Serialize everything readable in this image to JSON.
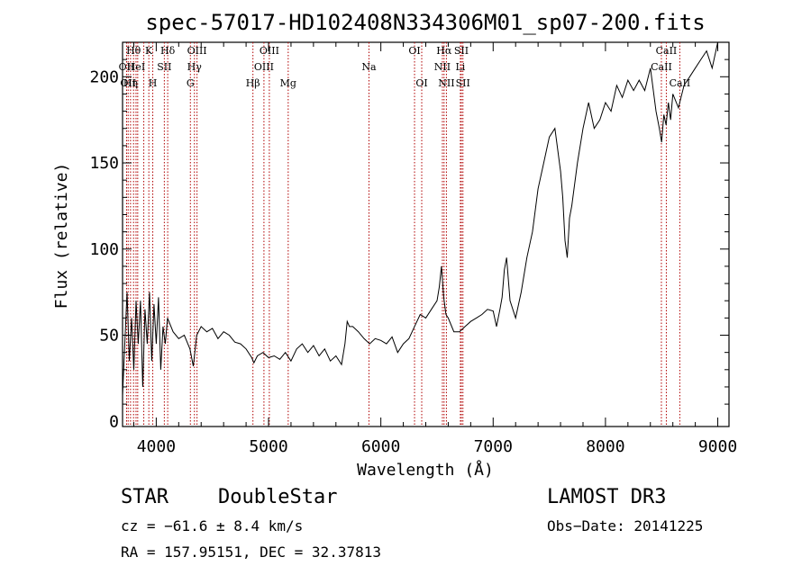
{
  "title": "spec-57017-HD102408N334306M01_sp07-200.fits",
  "chart_data": {
    "type": "line",
    "xlabel": "Wavelength (Å)",
    "ylabel": "Flux (relative)",
    "xlim": [
      3700,
      9100
    ],
    "ylim": [
      -3,
      220
    ],
    "xticks": [
      4000,
      5000,
      6000,
      7000,
      8000,
      9000
    ],
    "yticks": [
      0,
      50,
      100,
      150,
      200
    ],
    "grid": false,
    "series": [
      {
        "color": "#000000",
        "x": [
          3700,
          3720,
          3740,
          3760,
          3780,
          3800,
          3820,
          3840,
          3860,
          3880,
          3900,
          3920,
          3940,
          3960,
          3980,
          4000,
          4020,
          4040,
          4060,
          4080,
          4100,
          4150,
          4200,
          4250,
          4300,
          4330,
          4360,
          4400,
          4450,
          4500,
          4550,
          4600,
          4650,
          4700,
          4750,
          4800,
          4850,
          4870,
          4900,
          4950,
          5000,
          5050,
          5100,
          5150,
          5200,
          5250,
          5300,
          5350,
          5400,
          5450,
          5500,
          5550,
          5600,
          5650,
          5680,
          5700,
          5720,
          5750,
          5800,
          5850,
          5900,
          5950,
          6000,
          6050,
          6100,
          6150,
          6200,
          6250,
          6300,
          6350,
          6400,
          6450,
          6500,
          6520,
          6540,
          6560,
          6580,
          6600,
          6650,
          6700,
          6750,
          6800,
          6850,
          6900,
          6950,
          7000,
          7030,
          7060,
          7080,
          7100,
          7120,
          7150,
          7200,
          7250,
          7300,
          7350,
          7400,
          7450,
          7500,
          7550,
          7600,
          7620,
          7640,
          7660,
          7680,
          7700,
          7750,
          7800,
          7850,
          7900,
          7950,
          8000,
          8050,
          8100,
          8150,
          8200,
          8250,
          8300,
          8350,
          8400,
          8450,
          8480,
          8500,
          8520,
          8540,
          8560,
          8580,
          8600,
          8650,
          8700,
          8750,
          8800,
          8850,
          8900,
          8950,
          9000
        ],
        "y": [
          15,
          45,
          75,
          35,
          60,
          30,
          70,
          45,
          70,
          20,
          65,
          45,
          75,
          35,
          68,
          45,
          72,
          30,
          55,
          45,
          60,
          52,
          48,
          50,
          42,
          32,
          50,
          55,
          52,
          54,
          48,
          52,
          50,
          46,
          45,
          42,
          37,
          34,
          38,
          40,
          37,
          38,
          36,
          40,
          35,
          42,
          45,
          40,
          44,
          38,
          42,
          35,
          38,
          33,
          45,
          58,
          55,
          55,
          52,
          48,
          45,
          48,
          47,
          45,
          49,
          40,
          45,
          48,
          55,
          62,
          60,
          65,
          70,
          78,
          90,
          72,
          62,
          60,
          52,
          52,
          55,
          58,
          60,
          62,
          65,
          64,
          55,
          65,
          72,
          88,
          95,
          70,
          60,
          75,
          95,
          110,
          135,
          150,
          165,
          170,
          145,
          130,
          105,
          95,
          118,
          125,
          150,
          170,
          185,
          170,
          175,
          185,
          180,
          195,
          188,
          198,
          192,
          198,
          192,
          205,
          180,
          170,
          162,
          178,
          172,
          185,
          175,
          190,
          182,
          195,
          200,
          205,
          210,
          215,
          205,
          222
        ]
      }
    ],
    "lines": [
      {
        "w": 3736,
        "label": "OII",
        "row": 2
      },
      {
        "w": 3750,
        "label": "OII",
        "row": 3
      },
      {
        "w": 3771,
        "label": "Hη",
        "row": 3
      },
      {
        "w": 3798,
        "label": "Hθ",
        "row": 1
      },
      {
        "w": 3820,
        "label": "HeI",
        "row": 2
      },
      {
        "w": 3835,
        "label": "",
        "row": 0
      },
      {
        "w": 3889,
        "label": "",
        "row": 0
      },
      {
        "w": 3934,
        "label": "K",
        "row": 1
      },
      {
        "w": 3969,
        "label": "H",
        "row": 3
      },
      {
        "w": 4072,
        "label": "SII",
        "row": 2
      },
      {
        "w": 4102,
        "label": "Hδ",
        "row": 1
      },
      {
        "w": 4304,
        "label": "G",
        "row": 3
      },
      {
        "w": 4340,
        "label": "Hγ",
        "row": 2
      },
      {
        "w": 4363,
        "label": "OIII",
        "row": 1
      },
      {
        "w": 4861,
        "label": "Hβ",
        "row": 3
      },
      {
        "w": 4959,
        "label": "OIII",
        "row": 2
      },
      {
        "w": 5007,
        "label": "OIII",
        "row": 1
      },
      {
        "w": 5175,
        "label": "Mg",
        "row": 3
      },
      {
        "w": 5894,
        "label": "Na",
        "row": 2
      },
      {
        "w": 6300,
        "label": "OI",
        "row": 1
      },
      {
        "w": 6364,
        "label": "OI",
        "row": 3
      },
      {
        "w": 6548,
        "label": "NII",
        "row": 2
      },
      {
        "w": 6563,
        "label": "Hα",
        "row": 1
      },
      {
        "w": 6584,
        "label": "NII",
        "row": 3
      },
      {
        "w": 6708,
        "label": "Li",
        "row": 2
      },
      {
        "w": 6717,
        "label": "SII",
        "row": 1
      },
      {
        "w": 6731,
        "label": "SII",
        "row": 3
      },
      {
        "w": 8498,
        "label": "CaII",
        "row": 2
      },
      {
        "w": 8542,
        "label": "CaII",
        "row": 1
      },
      {
        "w": 8662,
        "label": "CaII",
        "row": 3
      }
    ]
  },
  "info": {
    "class": "STAR",
    "subclass": "DoubleStar",
    "survey": "LAMOST DR3",
    "cz": "cz = −61.6 ± 8.4 km/s",
    "obs_date": "Obs−Date: 20141225",
    "coords": "RA = 157.95151, DEC =  32.37813"
  }
}
